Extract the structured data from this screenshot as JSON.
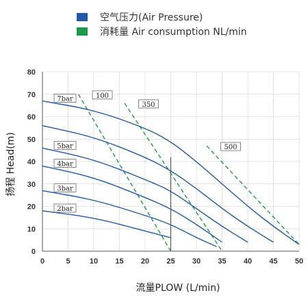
{
  "chart_data": {
    "type": "line",
    "legend": [
      {
        "label": "空气压力(Air Pressure)",
        "color": "#1e5aa8"
      },
      {
        "label": "消耗量 Air consumption NL/min",
        "color": "#1c9a4a"
      }
    ],
    "xlabel": "流量PLOW (L/min)",
    "ylabel": "扬程 Head(m)",
    "xlim": [
      0,
      50
    ],
    "ylim": [
      0,
      80
    ],
    "xticks": [
      "0",
      "5",
      "10",
      "15",
      "20",
      "25",
      "30",
      "35",
      "40",
      "45",
      "50"
    ],
    "yticks": [
      "0",
      "10",
      "20",
      "30",
      "40",
      "50",
      "60",
      "70",
      "80"
    ],
    "pressure_series": [
      {
        "label": "7bar",
        "x": [
          0,
          10,
          20,
          25,
          30,
          35,
          40,
          45,
          50
        ],
        "y": [
          67,
          63,
          55,
          49,
          40,
          30,
          20,
          11,
          3
        ]
      },
      {
        "label": "",
        "x": [
          0,
          10,
          20,
          25,
          30,
          35,
          40,
          45
        ],
        "y": [
          56,
          51,
          42,
          36,
          28,
          19,
          11,
          4
        ]
      },
      {
        "label": "5bar",
        "x": [
          0,
          10,
          20,
          25,
          30,
          35,
          40
        ],
        "y": [
          46,
          41,
          32,
          27,
          19,
          11,
          4
        ]
      },
      {
        "label": "4bar",
        "x": [
          0,
          10,
          20,
          25,
          30,
          35
        ],
        "y": [
          38,
          33,
          24,
          19,
          12,
          4
        ]
      },
      {
        "label": "3bar",
        "x": [
          0,
          10,
          20,
          25,
          30,
          34
        ],
        "y": [
          27,
          23,
          16,
          12,
          6,
          2
        ]
      },
      {
        "label": "2bar",
        "x": [
          0,
          10,
          20,
          25
        ],
        "y": [
          18,
          15,
          9,
          6
        ]
      }
    ],
    "consumption_series": [
      {
        "label": "100",
        "x": [
          7,
          25
        ],
        "y": [
          70,
          0
        ]
      },
      {
        "label": "350",
        "x": [
          16,
          35
        ],
        "y": [
          66,
          0
        ]
      },
      {
        "label": "500",
        "x": [
          32,
          50
        ],
        "y": [
          47,
          3
        ]
      }
    ],
    "marker_line": {
      "x": 25,
      "y": [
        0,
        42
      ]
    },
    "colors": {
      "pressure": "#1e5aa8",
      "consumption": "#1c9a4a",
      "axis": "#555555"
    }
  }
}
